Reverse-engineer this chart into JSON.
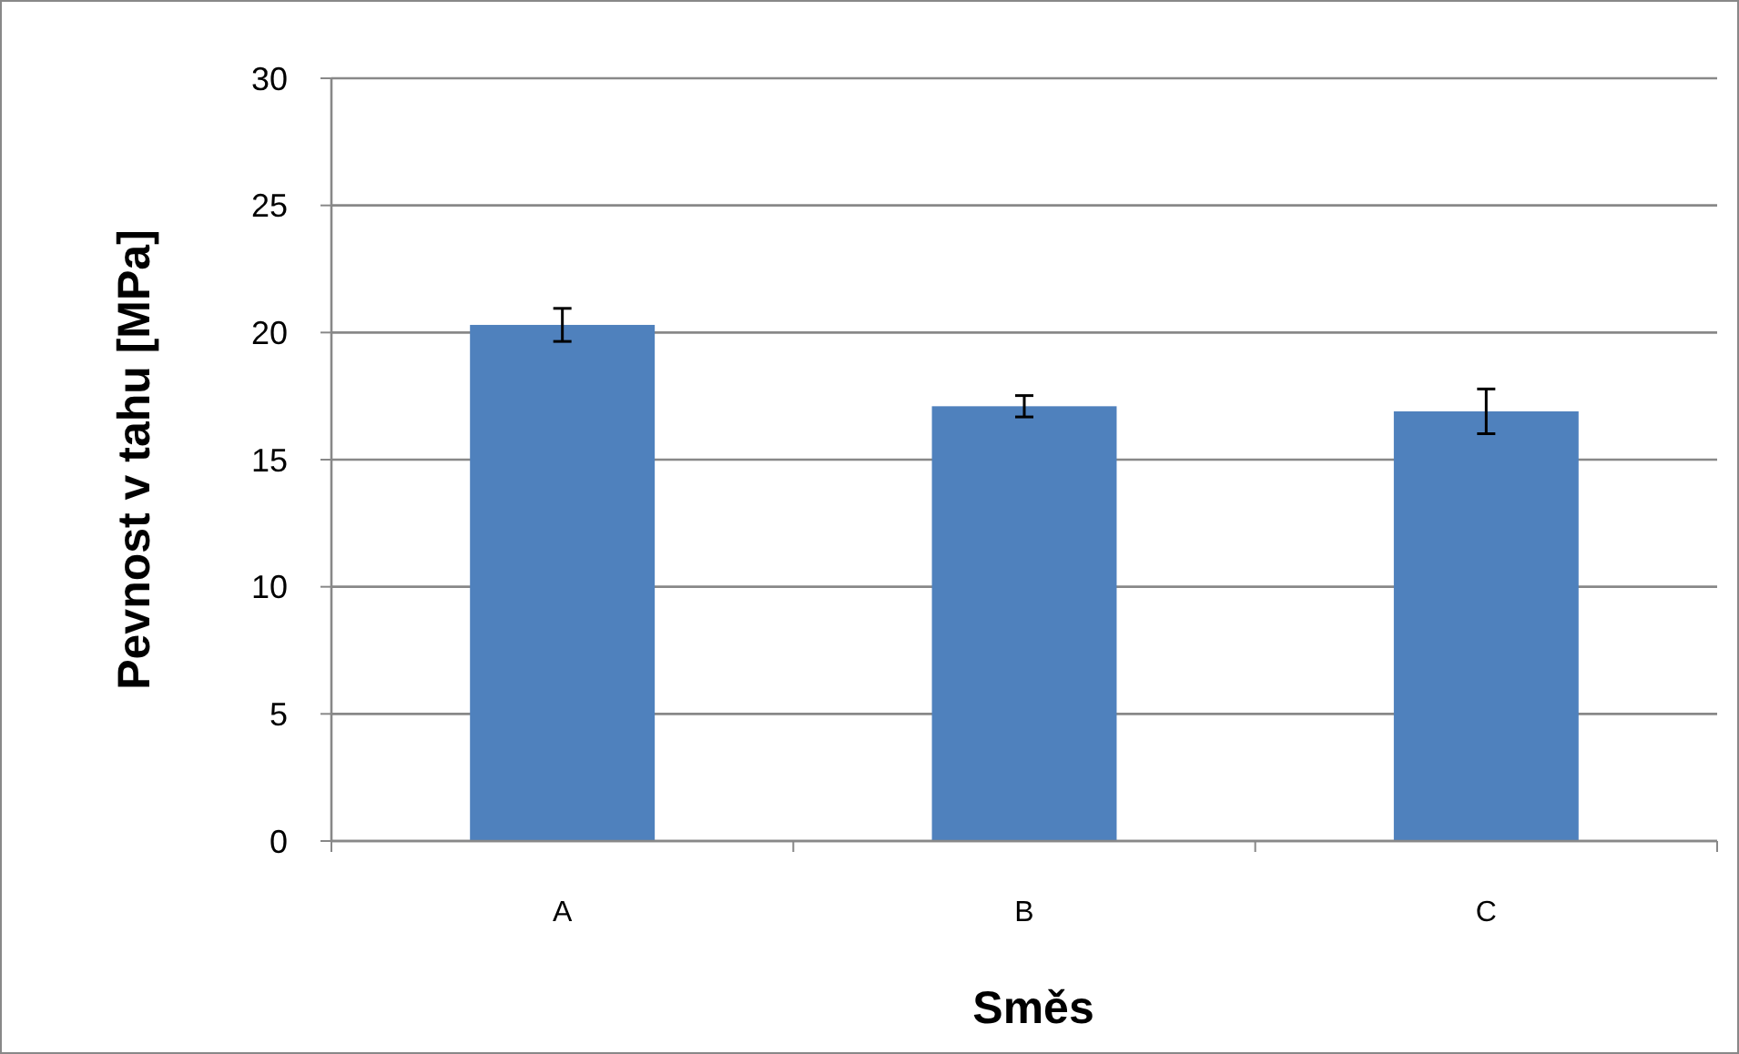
{
  "chart_data": {
    "type": "bar",
    "xlabel": "Směs",
    "ylabel": "Pevnost v tahu [MPa]",
    "categories": [
      "A",
      "B",
      "C"
    ],
    "values": [
      20.3,
      17.1,
      16.9
    ],
    "errors": [
      0.65,
      0.42,
      0.88
    ],
    "color": "#4f81bd",
    "ylim": [
      0,
      30
    ],
    "yticks": [
      0,
      5,
      10,
      15,
      20,
      25,
      30
    ],
    "grid": "y"
  }
}
